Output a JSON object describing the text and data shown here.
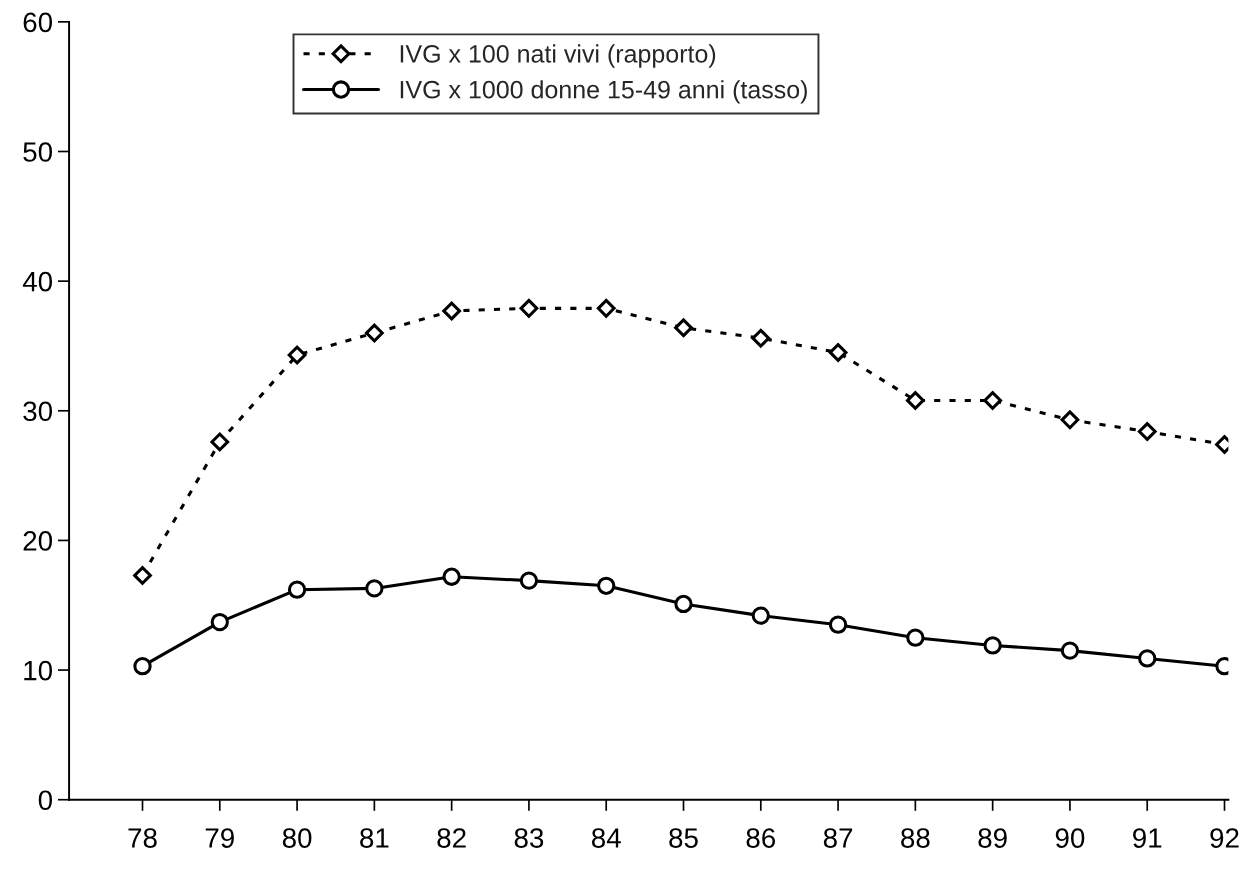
{
  "chart_data": {
    "type": "line",
    "categories": [
      "78",
      "79",
      "80",
      "81",
      "82",
      "83",
      "84",
      "85",
      "86",
      "87",
      "88",
      "89",
      "90",
      "91",
      "92"
    ],
    "series": [
      {
        "name": "IVG x 100 nati vivi (rapporto)",
        "color": "#000000",
        "marker": "diamond",
        "line_style": "dotted",
        "values": [
          17.3,
          27.6,
          34.3,
          36.0,
          37.7,
          37.9,
          37.9,
          36.4,
          35.6,
          34.5,
          30.8,
          30.8,
          29.3,
          28.4,
          27.4
        ]
      },
      {
        "name": "IVG x 1000 donne 15-49 anni (tasso)",
        "color": "#000000",
        "marker": "circle",
        "line_style": "solid",
        "values": [
          10.3,
          13.7,
          16.2,
          16.3,
          17.2,
          16.9,
          16.5,
          15.1,
          14.2,
          13.5,
          12.5,
          11.9,
          11.5,
          10.9,
          10.3
        ]
      }
    ],
    "ylim": [
      0,
      60
    ],
    "yticks": [
      0,
      10,
      20,
      30,
      40,
      50,
      60
    ],
    "grid": false,
    "legend": "top"
  }
}
